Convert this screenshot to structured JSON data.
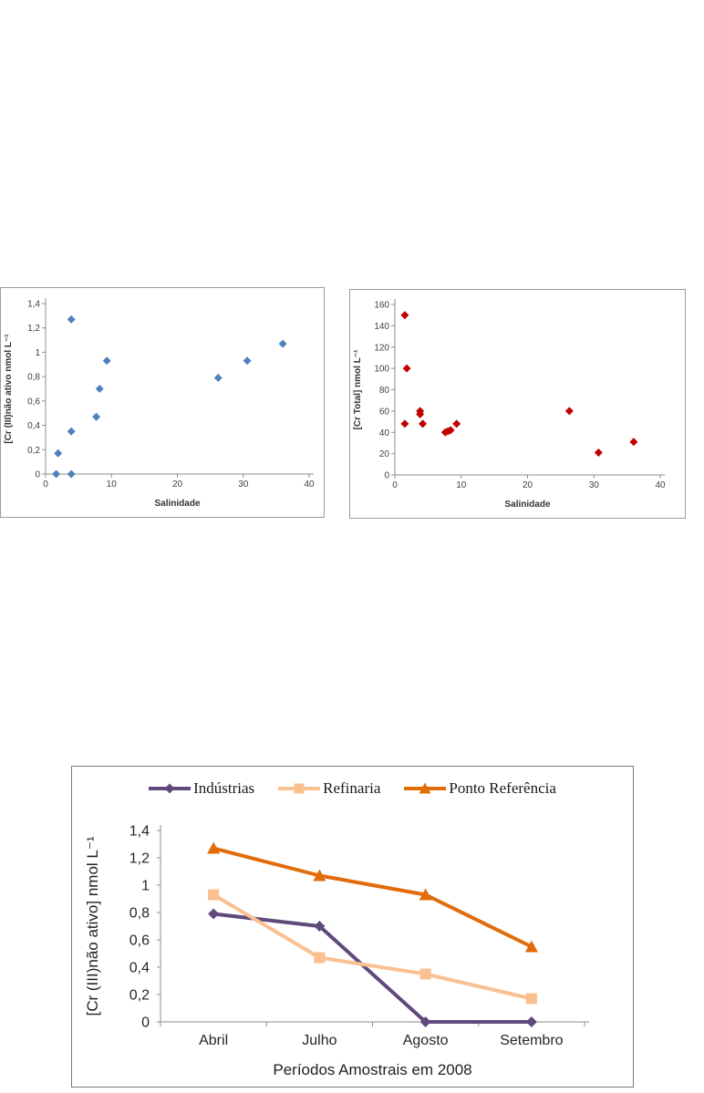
{
  "page": {
    "background_color": "#ffffff"
  },
  "chart_data": [
    {
      "name": "cr3-vs-salinity",
      "type": "scatter",
      "title": "",
      "xlabel": "Salinidade",
      "ylabel": "[Cr (III)não ativo nmol L⁻¹",
      "xlim": [
        0,
        40
      ],
      "ylim": [
        0,
        1.4
      ],
      "xtick_values": [
        0,
        10,
        20,
        30,
        40
      ],
      "xtick_labels": [
        "0",
        "10",
        "20",
        "30",
        "40"
      ],
      "ytick_values": [
        0,
        0.2,
        0.4,
        0.6,
        0.8,
        1,
        1.2,
        1.4
      ],
      "ytick_labels": [
        "0",
        "0,2",
        "0,4",
        "0,6",
        "0,8",
        "1",
        "1,2",
        "1,4"
      ],
      "marker": "diamond",
      "color": "#4f81bd",
      "grid": false,
      "legend_position": "none",
      "points": [
        [
          1.6,
          0
        ],
        [
          1.9,
          0.17
        ],
        [
          3.9,
          0
        ],
        [
          3.9,
          0.35
        ],
        [
          3.9,
          1.27
        ],
        [
          7.7,
          0.47
        ],
        [
          8.2,
          0.7
        ],
        [
          9.3,
          0.93
        ],
        [
          26.2,
          0.79
        ],
        [
          30.6,
          0.93
        ],
        [
          36,
          1.07
        ]
      ]
    },
    {
      "name": "crtotal-vs-salinity",
      "type": "scatter",
      "title": "",
      "xlabel": "Salinidade",
      "ylabel": "[Cr Total] nmol L⁻¹",
      "xlim": [
        0,
        40
      ],
      "ylim": [
        0,
        160
      ],
      "xtick_values": [
        0,
        10,
        20,
        30,
        40
      ],
      "xtick_labels": [
        "0",
        "10",
        "20",
        "30",
        "40"
      ],
      "ytick_values": [
        0,
        20,
        40,
        60,
        80,
        100,
        120,
        140,
        160
      ],
      "ytick_labels": [
        "0",
        "20",
        "40",
        "60",
        "80",
        "100",
        "120",
        "140",
        "160"
      ],
      "marker": "diamond",
      "color": "#c00000",
      "grid": false,
      "legend_position": "none",
      "points": [
        [
          1.5,
          150
        ],
        [
          1.8,
          100
        ],
        [
          1.5,
          48
        ],
        [
          3.8,
          60
        ],
        [
          3.8,
          57
        ],
        [
          4.2,
          48
        ],
        [
          7.6,
          40
        ],
        [
          8,
          41
        ],
        [
          8.4,
          42
        ],
        [
          9.3,
          48
        ],
        [
          26.3,
          60
        ],
        [
          30.7,
          21
        ],
        [
          36,
          31
        ]
      ]
    },
    {
      "name": "periods-2008",
      "type": "line",
      "title": "",
      "xlabel": "Períodos Amostrais em 2008",
      "ylabel": "[Cr (III)não ativo] nmol L⁻¹",
      "categories": [
        "Abril",
        "Julho",
        "Agosto",
        "Setembro"
      ],
      "ylim": [
        0,
        1.4
      ],
      "ytick_values": [
        0,
        0.2,
        0.4,
        0.6,
        0.8,
        1,
        1.2,
        1.4
      ],
      "ytick_labels": [
        "0",
        "0,2",
        "0,4",
        "0,6",
        "0,8",
        "1",
        "1,2",
        "1,4"
      ],
      "grid": false,
      "legend_position": "top",
      "series": [
        {
          "name": "Indústrias",
          "marker": "diamond",
          "color": "#604a7b",
          "values": [
            0.79,
            0.7,
            0,
            0
          ]
        },
        {
          "name": "Refinaria",
          "marker": "square",
          "color": "#fac090",
          "values": [
            0.93,
            0.47,
            0.35,
            0.17
          ]
        },
        {
          "name": "Ponto Referência",
          "marker": "triangle",
          "color": "#e26b0a",
          "values": [
            1.27,
            1.07,
            0.93,
            0.55
          ]
        }
      ]
    }
  ]
}
